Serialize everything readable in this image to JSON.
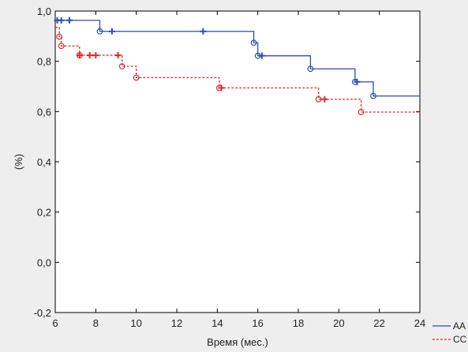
{
  "chart_data": {
    "type": "line",
    "title": "",
    "xlabel": "Время (мес.)",
    "ylabel": "(%)",
    "xlim": [
      6,
      24
    ],
    "ylim": [
      -0.2,
      1.0
    ],
    "x_ticks": [
      6,
      8,
      10,
      12,
      14,
      16,
      18,
      20,
      22,
      24
    ],
    "y_ticks": [
      -0.2,
      0.0,
      0.2,
      0.4,
      0.6,
      0.8,
      1.0
    ],
    "x_tick_labels": [
      "6",
      "8",
      "10",
      "12",
      "14",
      "16",
      "18",
      "20",
      "22",
      "24"
    ],
    "y_tick_labels": [
      "-0,2",
      "0,0",
      "0,2",
      "0,4",
      "0,6",
      "0,8",
      "1,0"
    ],
    "grid": false,
    "legend_position": "bottom-right",
    "series": [
      {
        "name": "AA",
        "color": "#2a4fb0",
        "line_style": "solid",
        "steps": [
          [
            6,
            0.963
          ],
          [
            8.2,
            0.919
          ],
          [
            15.8,
            0.874
          ],
          [
            16.0,
            0.822
          ],
          [
            18.6,
            0.77
          ],
          [
            20.8,
            0.718
          ],
          [
            21.7,
            0.662
          ],
          [
            24,
            0.662
          ]
        ],
        "events": [
          [
            8.2,
            0.919
          ],
          [
            15.8,
            0.874
          ],
          [
            16.0,
            0.822
          ],
          [
            18.6,
            0.77
          ],
          [
            20.8,
            0.718
          ],
          [
            21.7,
            0.662
          ]
        ],
        "censored": [
          [
            6.1,
            0.963
          ],
          [
            6.3,
            0.963
          ],
          [
            6.7,
            0.963
          ],
          [
            8.8,
            0.919
          ],
          [
            13.3,
            0.919
          ],
          [
            16.2,
            0.822
          ],
          [
            20.9,
            0.718
          ]
        ]
      },
      {
        "name": "CC",
        "color": "#e02b2b",
        "line_style": "dashed",
        "steps": [
          [
            6,
            0.935
          ],
          [
            6.2,
            0.898
          ],
          [
            6.3,
            0.861
          ],
          [
            7.2,
            0.824
          ],
          [
            9.3,
            0.78
          ],
          [
            10.0,
            0.735
          ],
          [
            14.1,
            0.694
          ],
          [
            19.0,
            0.649
          ],
          [
            21.1,
            0.598
          ],
          [
            24,
            0.598
          ]
        ],
        "events": [
          [
            6.2,
            0.898
          ],
          [
            6.3,
            0.861
          ],
          [
            7.2,
            0.824
          ],
          [
            9.3,
            0.78
          ],
          [
            10.0,
            0.735
          ],
          [
            14.1,
            0.694
          ],
          [
            19.0,
            0.649
          ],
          [
            21.1,
            0.598
          ]
        ],
        "censored": [
          [
            7.2,
            0.824
          ],
          [
            7.7,
            0.824
          ],
          [
            8.0,
            0.824
          ],
          [
            9.1,
            0.824
          ],
          [
            14.2,
            0.694
          ],
          [
            19.3,
            0.649
          ]
        ]
      }
    ]
  }
}
